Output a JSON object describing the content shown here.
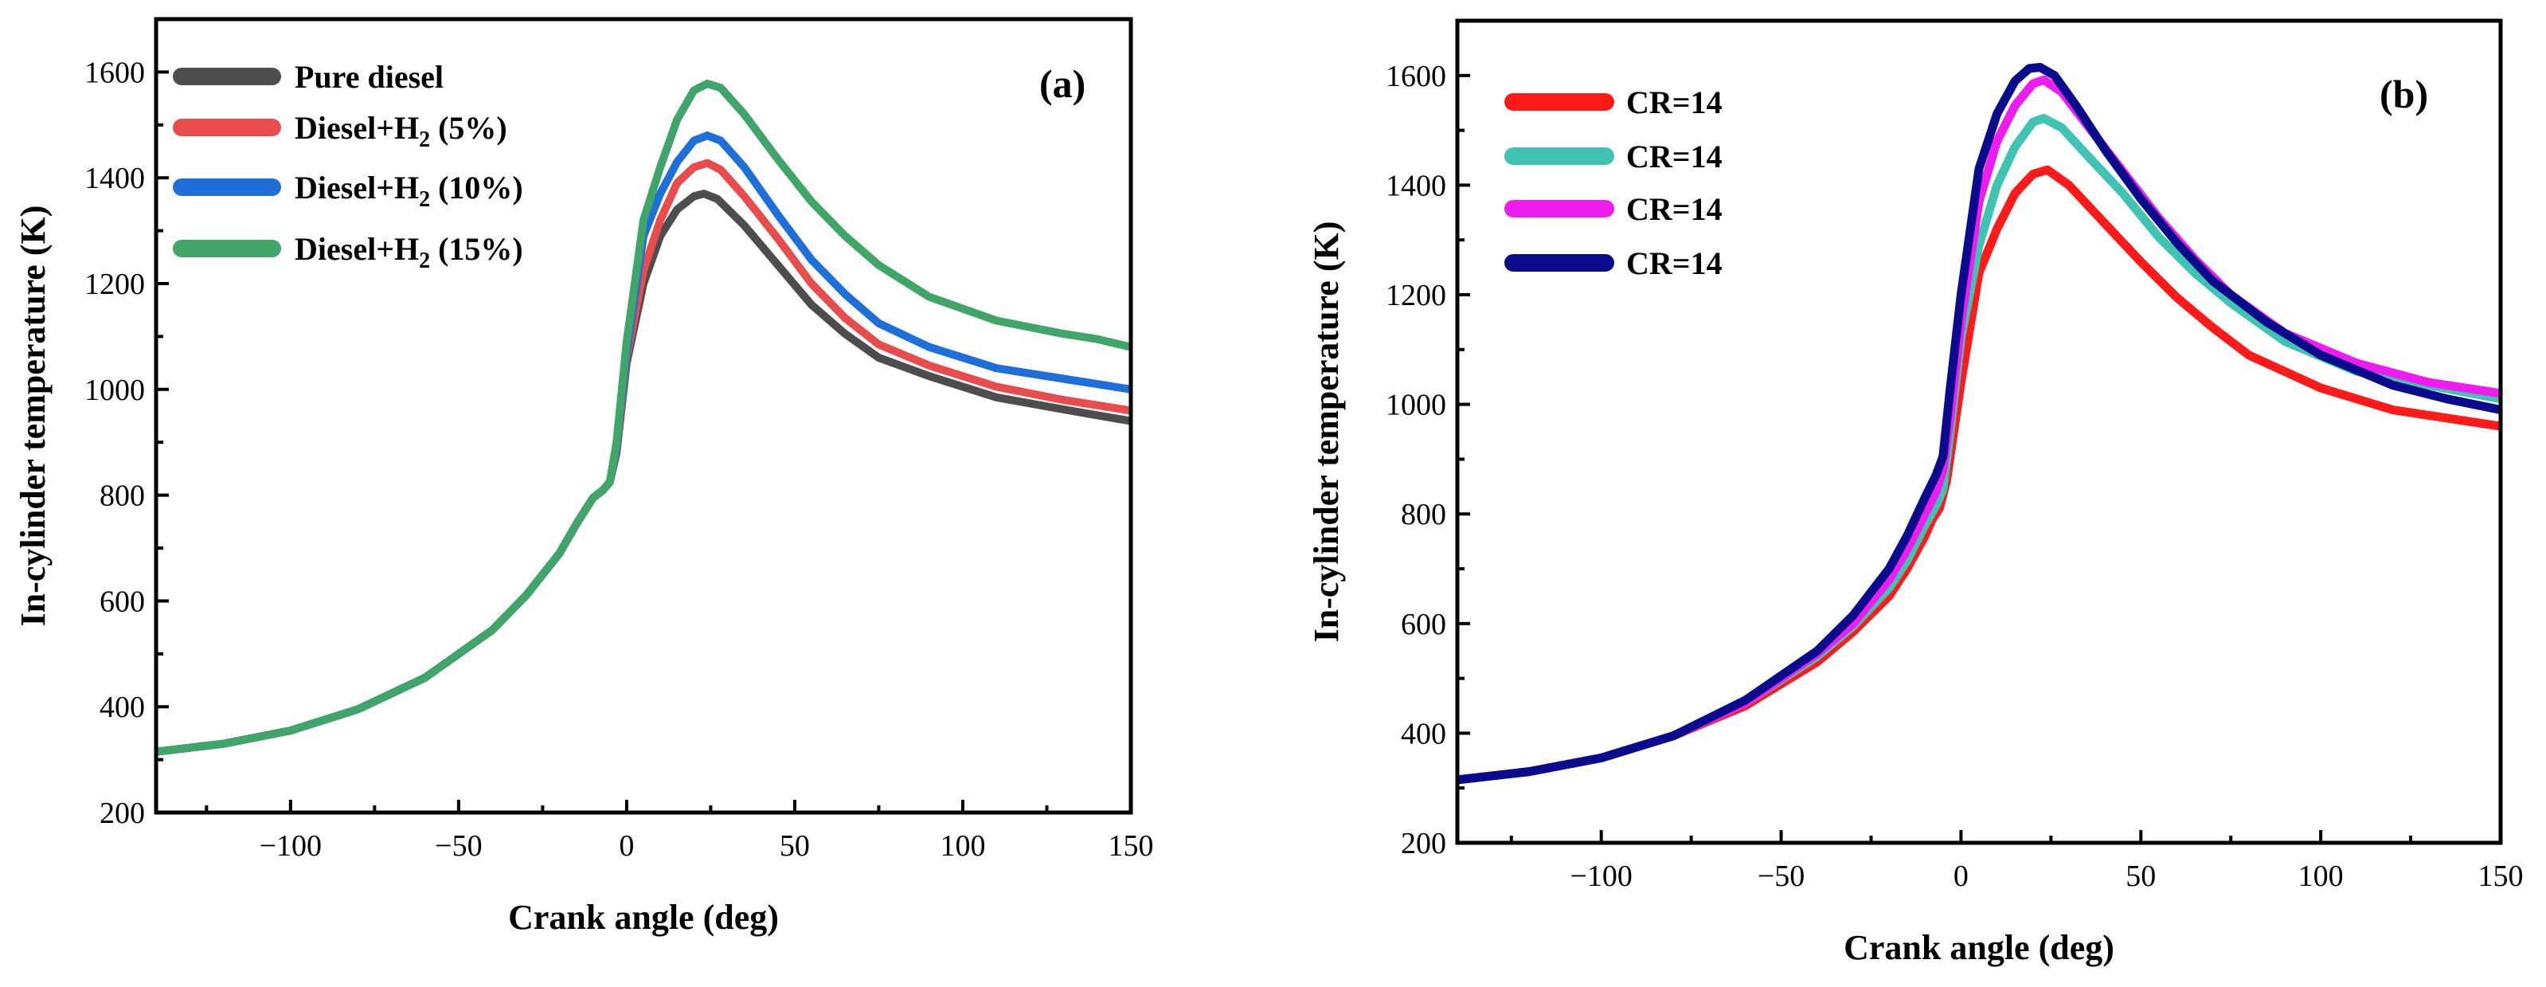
{
  "chart_data": [
    {
      "type": "line",
      "panel_label": "(a)",
      "xlabel": "Crank angle (deg)",
      "ylabel": "In-cylinder temperature (K)",
      "xlim": [
        -140,
        150
      ],
      "ylim": [
        200,
        1700
      ],
      "xticks": [
        -100,
        -50,
        0,
        50,
        100,
        150
      ],
      "yticks": [
        200,
        400,
        600,
        800,
        1000,
        1200,
        1400,
        1600
      ],
      "legend_position": "top-left",
      "series": [
        {
          "name": "Pure diesel",
          "color": "#4d4d4d",
          "points": [
            [
              -140,
              315
            ],
            [
              -120,
              330
            ],
            [
              -100,
              355
            ],
            [
              -80,
              395
            ],
            [
              -60,
              455
            ],
            [
              -40,
              545
            ],
            [
              -30,
              610
            ],
            [
              -20,
              690
            ],
            [
              -15,
              745
            ],
            [
              -10,
              795
            ],
            [
              -7,
              810
            ],
            [
              -5,
              825
            ],
            [
              -3,
              880
            ],
            [
              0,
              1050
            ],
            [
              5,
              1200
            ],
            [
              10,
              1290
            ],
            [
              15,
              1340
            ],
            [
              20,
              1365
            ],
            [
              23,
              1370
            ],
            [
              27,
              1360
            ],
            [
              35,
              1310
            ],
            [
              45,
              1235
            ],
            [
              55,
              1160
            ],
            [
              65,
              1105
            ],
            [
              75,
              1060
            ],
            [
              90,
              1025
            ],
            [
              110,
              985
            ],
            [
              130,
              962
            ],
            [
              150,
              940
            ]
          ]
        },
        {
          "name": "Diesel+H2 (5%)",
          "label_main": "Diesel+H",
          "label_sub": "2",
          "label_tail": " (5%)",
          "color": "#e84c4c",
          "points": [
            [
              -140,
              315
            ],
            [
              -120,
              330
            ],
            [
              -100,
              355
            ],
            [
              -80,
              395
            ],
            [
              -60,
              455
            ],
            [
              -40,
              545
            ],
            [
              -30,
              610
            ],
            [
              -20,
              690
            ],
            [
              -15,
              745
            ],
            [
              -10,
              795
            ],
            [
              -7,
              810
            ],
            [
              -5,
              825
            ],
            [
              -3,
              885
            ],
            [
              0,
              1060
            ],
            [
              5,
              1225
            ],
            [
              10,
              1320
            ],
            [
              15,
              1390
            ],
            [
              20,
              1420
            ],
            [
              24,
              1428
            ],
            [
              28,
              1415
            ],
            [
              35,
              1365
            ],
            [
              45,
              1285
            ],
            [
              55,
              1200
            ],
            [
              65,
              1135
            ],
            [
              75,
              1085
            ],
            [
              90,
              1045
            ],
            [
              110,
              1005
            ],
            [
              130,
              980
            ],
            [
              150,
              960
            ]
          ]
        },
        {
          "name": "Diesel+H2 (10%)",
          "label_main": "Diesel+H",
          "label_sub": "2",
          "label_tail": " (10%)",
          "color": "#1e6fd9",
          "points": [
            [
              -140,
              315
            ],
            [
              -120,
              330
            ],
            [
              -100,
              355
            ],
            [
              -80,
              395
            ],
            [
              -60,
              455
            ],
            [
              -40,
              545
            ],
            [
              -30,
              610
            ],
            [
              -20,
              690
            ],
            [
              -15,
              745
            ],
            [
              -10,
              795
            ],
            [
              -7,
              810
            ],
            [
              -5,
              825
            ],
            [
              -3,
              890
            ],
            [
              0,
              1070
            ],
            [
              5,
              1290
            ],
            [
              10,
              1370
            ],
            [
              15,
              1430
            ],
            [
              20,
              1470
            ],
            [
              24,
              1480
            ],
            [
              28,
              1470
            ],
            [
              35,
              1420
            ],
            [
              45,
              1330
            ],
            [
              55,
              1245
            ],
            [
              65,
              1180
            ],
            [
              75,
              1125
            ],
            [
              90,
              1080
            ],
            [
              110,
              1040
            ],
            [
              130,
              1020
            ],
            [
              150,
              1000
            ]
          ]
        },
        {
          "name": "Diesel+H2 (15%)",
          "label_main": "Diesel+H",
          "label_sub": "2",
          "label_tail": " (15%)",
          "color": "#3fa568",
          "points": [
            [
              -140,
              315
            ],
            [
              -120,
              330
            ],
            [
              -100,
              355
            ],
            [
              -80,
              395
            ],
            [
              -60,
              455
            ],
            [
              -40,
              545
            ],
            [
              -30,
              610
            ],
            [
              -20,
              690
            ],
            [
              -15,
              745
            ],
            [
              -10,
              795
            ],
            [
              -7,
              810
            ],
            [
              -5,
              825
            ],
            [
              -3,
              900
            ],
            [
              0,
              1090
            ],
            [
              5,
              1320
            ],
            [
              10,
              1420
            ],
            [
              15,
              1510
            ],
            [
              20,
              1565
            ],
            [
              24,
              1578
            ],
            [
              28,
              1570
            ],
            [
              35,
              1520
            ],
            [
              45,
              1435
            ],
            [
              55,
              1355
            ],
            [
              65,
              1290
            ],
            [
              75,
              1235
            ],
            [
              90,
              1175
            ],
            [
              110,
              1130
            ],
            [
              130,
              1105
            ],
            [
              140,
              1095
            ],
            [
              150,
              1080
            ]
          ]
        }
      ]
    },
    {
      "type": "line",
      "panel_label": "(b)",
      "xlabel": "Crank angle (deg)",
      "ylabel": "In-cylinder temperature (K)",
      "xlim": [
        -140,
        150
      ],
      "ylim": [
        200,
        1700
      ],
      "xticks": [
        -100,
        -50,
        0,
        50,
        100,
        150
      ],
      "yticks": [
        200,
        400,
        600,
        800,
        1000,
        1200,
        1400,
        1600
      ],
      "legend_position": "top-left",
      "series": [
        {
          "name": "CR=14",
          "color": "#ff1a1a",
          "points": [
            [
              -140,
              315
            ],
            [
              -120,
              330
            ],
            [
              -100,
              355
            ],
            [
              -80,
              395
            ],
            [
              -60,
              450
            ],
            [
              -40,
              530
            ],
            [
              -30,
              585
            ],
            [
              -20,
              650
            ],
            [
              -15,
              700
            ],
            [
              -10,
              760
            ],
            [
              -8,
              790
            ],
            [
              -6,
              810
            ],
            [
              -4,
              860
            ],
            [
              0,
              1040
            ],
            [
              5,
              1240
            ],
            [
              10,
              1320
            ],
            [
              15,
              1385
            ],
            [
              20,
              1420
            ],
            [
              24,
              1428
            ],
            [
              30,
              1400
            ],
            [
              40,
              1330
            ],
            [
              50,
              1260
            ],
            [
              60,
              1195
            ],
            [
              70,
              1140
            ],
            [
              80,
              1090
            ],
            [
              100,
              1030
            ],
            [
              120,
              990
            ],
            [
              135,
              975
            ],
            [
              150,
              960
            ]
          ]
        },
        {
          "name": "CR=14",
          "color": "#3fc4b4",
          "points": [
            [
              -140,
              315
            ],
            [
              -120,
              330
            ],
            [
              -100,
              355
            ],
            [
              -80,
              395
            ],
            [
              -60,
              455
            ],
            [
              -40,
              540
            ],
            [
              -30,
              595
            ],
            [
              -20,
              665
            ],
            [
              -15,
              715
            ],
            [
              -10,
              780
            ],
            [
              -7,
              815
            ],
            [
              -5,
              845
            ],
            [
              -3,
              950
            ],
            [
              0,
              1120
            ],
            [
              5,
              1290
            ],
            [
              10,
              1400
            ],
            [
              15,
              1470
            ],
            [
              20,
              1515
            ],
            [
              23,
              1522
            ],
            [
              28,
              1505
            ],
            [
              35,
              1455
            ],
            [
              45,
              1385
            ],
            [
              55,
              1305
            ],
            [
              65,
              1240
            ],
            [
              75,
              1185
            ],
            [
              90,
              1115
            ],
            [
              110,
              1060
            ],
            [
              130,
              1035
            ],
            [
              150,
              1010
            ]
          ]
        },
        {
          "name": "CR=14",
          "color": "#ee1cee",
          "points": [
            [
              -140,
              315
            ],
            [
              -120,
              330
            ],
            [
              -100,
              355
            ],
            [
              -80,
              395
            ],
            [
              -60,
              455
            ],
            [
              -40,
              545
            ],
            [
              -30,
              600
            ],
            [
              -20,
              680
            ],
            [
              -15,
              735
            ],
            [
              -10,
              800
            ],
            [
              -7,
              840
            ],
            [
              -5,
              880
            ],
            [
              -3,
              980
            ],
            [
              0,
              1150
            ],
            [
              5,
              1370
            ],
            [
              10,
              1480
            ],
            [
              15,
              1545
            ],
            [
              20,
              1585
            ],
            [
              23,
              1592
            ],
            [
              28,
              1570
            ],
            [
              35,
              1510
            ],
            [
              45,
              1425
            ],
            [
              55,
              1340
            ],
            [
              65,
              1265
            ],
            [
              75,
              1200
            ],
            [
              90,
              1130
            ],
            [
              110,
              1075
            ],
            [
              130,
              1040
            ],
            [
              150,
              1020
            ]
          ]
        },
        {
          "name": "CR=14",
          "color": "#0a0a8c",
          "points": [
            [
              -140,
              315
            ],
            [
              -120,
              330
            ],
            [
              -100,
              355
            ],
            [
              -80,
              395
            ],
            [
              -60,
              460
            ],
            [
              -40,
              550
            ],
            [
              -30,
              615
            ],
            [
              -20,
              700
            ],
            [
              -15,
              760
            ],
            [
              -10,
              830
            ],
            [
              -7,
              870
            ],
            [
              -5,
              905
            ],
            [
              -3,
              1030
            ],
            [
              0,
              1200
            ],
            [
              5,
              1430
            ],
            [
              10,
              1530
            ],
            [
              15,
              1590
            ],
            [
              19,
              1613
            ],
            [
              22,
              1615
            ],
            [
              26,
              1600
            ],
            [
              32,
              1545
            ],
            [
              40,
              1465
            ],
            [
              50,
              1375
            ],
            [
              60,
              1295
            ],
            [
              70,
              1225
            ],
            [
              85,
              1150
            ],
            [
              100,
              1090
            ],
            [
              120,
              1035
            ],
            [
              135,
              1010
            ],
            [
              150,
              990
            ]
          ]
        }
      ]
    }
  ]
}
